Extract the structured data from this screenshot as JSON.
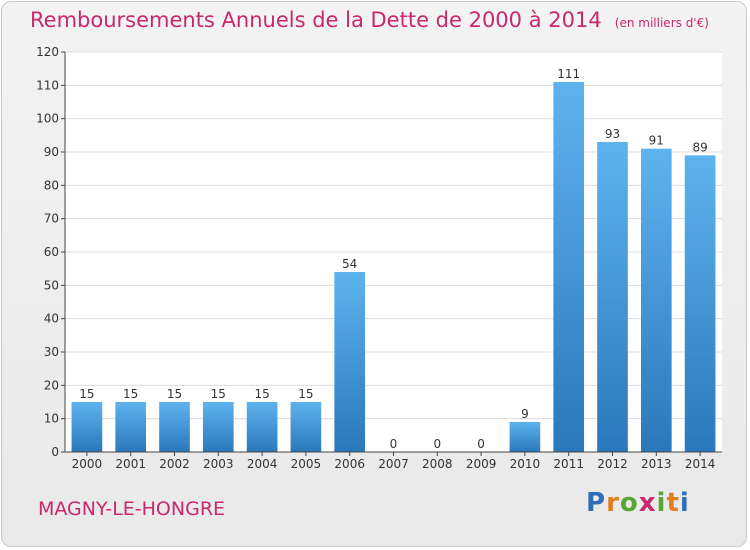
{
  "header": {
    "title": "Remboursements Annuels de la Dette de 2000 à 2014",
    "subtitle": "(en milliers d'€)"
  },
  "footer": {
    "commune": "MAGNY-LE-HONGRE",
    "logo_text": "Proxiti"
  },
  "colors": {
    "title": "#c8286e",
    "bar_top": "#5eb3ee",
    "bar_bottom": "#2a78bb",
    "logo_letters": [
      "#2f6db5",
      "#e07f1f",
      "#5aa532",
      "#c8286e",
      "#5aa532",
      "#e07f1f",
      "#2f6db5"
    ]
  },
  "chart_data": {
    "type": "bar",
    "title": "Remboursements Annuels de la Dette de 2000 à 2014",
    "subtitle": "(en milliers d'€)",
    "categories": [
      "2000",
      "2001",
      "2002",
      "2003",
      "2004",
      "2005",
      "2006",
      "2007",
      "2008",
      "2009",
      "2010",
      "2011",
      "2012",
      "2013",
      "2014"
    ],
    "values": [
      15,
      15,
      15,
      15,
      15,
      15,
      54,
      0,
      0,
      0,
      9,
      111,
      93,
      91,
      89
    ],
    "ylim": [
      0,
      120
    ],
    "yticks": [
      0,
      10,
      20,
      30,
      40,
      50,
      60,
      70,
      80,
      90,
      100,
      110,
      120
    ],
    "grid": true,
    "legend": "none"
  }
}
